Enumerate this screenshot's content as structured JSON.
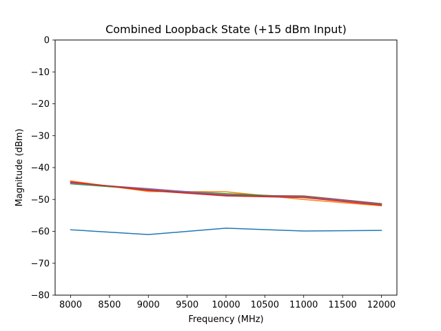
{
  "chart_data": {
    "type": "line",
    "title": "Combined Loopback State (+15 dBm Input)",
    "xlabel": "Frequency (MHz)",
    "ylabel": "Magnitude (dBm)",
    "xlim": [
      7800,
      12200
    ],
    "ylim": [
      -80,
      0
    ],
    "xticks": [
      8000,
      8500,
      9000,
      9500,
      10000,
      10500,
      11000,
      11500,
      12000
    ],
    "yticks": [
      0,
      -10,
      -20,
      -30,
      -40,
      -50,
      -60,
      -70,
      -80
    ],
    "grid": false,
    "x": [
      8000,
      9000,
      10000,
      11000,
      12000
    ],
    "series": [
      {
        "values": [
          -59.5,
          -61.0,
          -59.0,
          -59.9,
          -59.7
        ],
        "color": "#1f77b4"
      },
      {
        "values": [
          -44.2,
          -47.5,
          -47.6,
          -50.0,
          -52.0
        ],
        "color": "#ff7f0e"
      },
      {
        "values": [
          -45.1,
          -46.9,
          -48.2,
          -49.2,
          -51.5
        ],
        "color": "#2ca02c"
      },
      {
        "values": [
          -44.9,
          -46.6,
          -48.5,
          -49.3,
          -51.4
        ],
        "color": "#9467bd"
      },
      {
        "values": [
          -44.6,
          -46.9,
          -48.7,
          -48.9,
          -51.3
        ],
        "color": "#8c564b"
      },
      {
        "values": [
          -44.5,
          -47.2,
          -48.9,
          -49.4,
          -51.8
        ],
        "color": "#d62728"
      }
    ]
  }
}
